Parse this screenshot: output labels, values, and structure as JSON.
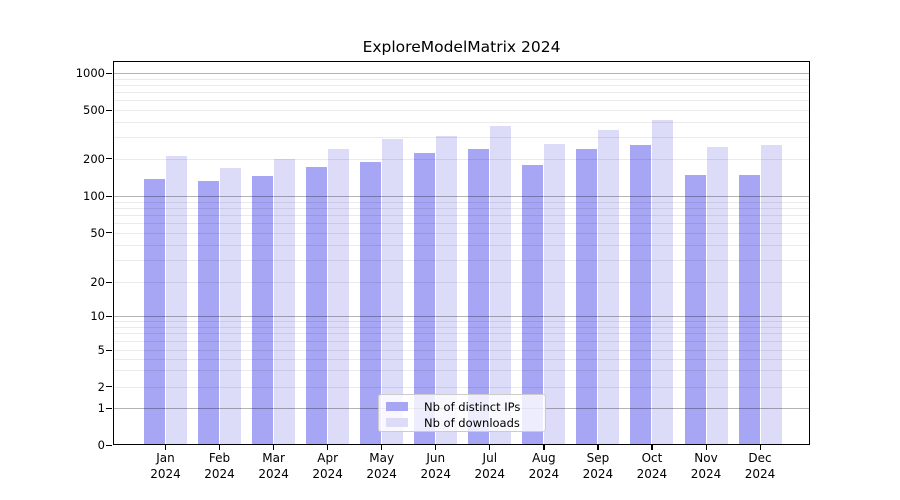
{
  "chart_data": {
    "type": "bar",
    "title": "ExploreModelMatrix 2024",
    "categories": [
      "Jan",
      "Feb",
      "Mar",
      "Apr",
      "May",
      "Jun",
      "Jul",
      "Aug",
      "Sep",
      "Oct",
      "Nov",
      "Dec"
    ],
    "year_label": "2024",
    "series": [
      {
        "name": "Nb of distinct IPs",
        "color": "#a6a6f4",
        "values": [
          137,
          132,
          144,
          173,
          190,
          224,
          242,
          179,
          241,
          258,
          147,
          149
        ]
      },
      {
        "name": "Nb of downloads",
        "color": "#dcdcf9",
        "values": [
          212,
          168,
          201,
          241,
          291,
          305,
          371,
          264,
          346,
          411,
          250,
          260
        ]
      }
    ],
    "y_axis": {
      "scale": "symlog",
      "ticks": [
        0,
        1,
        2,
        5,
        10,
        20,
        50,
        100,
        200,
        500,
        1000
      ],
      "major_gridlines": [
        1,
        10,
        100,
        1000
      ],
      "minor_gridlines": [
        2,
        3,
        4,
        5,
        6,
        7,
        8,
        9,
        20,
        30,
        40,
        50,
        60,
        70,
        80,
        90,
        200,
        300,
        400,
        500,
        600,
        700,
        800,
        900
      ],
      "ylim": [
        0,
        1000
      ]
    },
    "legend": {
      "position": "lower center"
    },
    "grid": true,
    "colors": {
      "major_grid": "#b4b4b4",
      "minor_grid": "#eaeaea",
      "spine": "#000000",
      "text": "#000000",
      "legend_border": "#cccccc"
    }
  }
}
